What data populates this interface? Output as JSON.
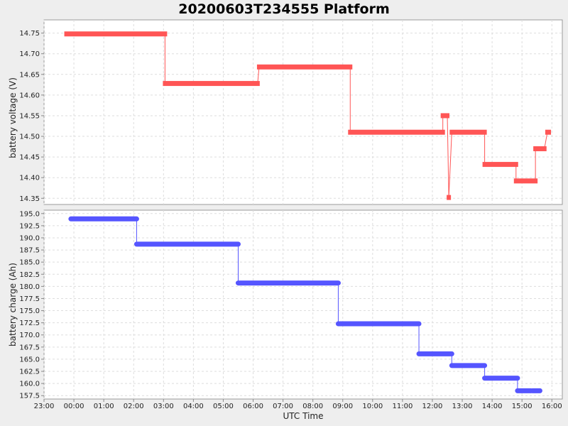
{
  "chart_data": {
    "type": "line",
    "title": "20200603T234555 Platform",
    "xlabel": "UTC Time",
    "x_ticks": [
      "23:00",
      "00:00",
      "01:00",
      "02:00",
      "03:00",
      "04:00",
      "05:00",
      "06:00",
      "07:00",
      "08:00",
      "09:00",
      "10:00",
      "11:00",
      "12:00",
      "13:00",
      "14:00",
      "15:00",
      "16:00"
    ],
    "xlim": [
      -1.0,
      16.35
    ],
    "grid": true,
    "panels": [
      {
        "ylabel": "battery voltage (V)",
        "ylim": [
          14.335,
          14.782
        ],
        "y_ticks": [
          "14.35",
          "14.40",
          "14.45",
          "14.50",
          "14.55",
          "14.60",
          "14.65",
          "14.70",
          "14.75"
        ],
        "series": [
          {
            "color": "#ff5555",
            "segments": [
              {
                "x_start": -0.25,
                "x_end": 3.05,
                "y": 14.748
              },
              {
                "x_start": 3.05,
                "x_end": 6.15,
                "y": 14.628
              },
              {
                "x_start": 6.2,
                "x_end": 9.25,
                "y": 14.668
              },
              {
                "x_start": 9.25,
                "x_end": 12.35,
                "y": 14.51
              },
              {
                "x_start": 12.35,
                "x_end": 12.5,
                "y": 14.55
              },
              {
                "x_start": 12.55,
                "x_end": 12.55,
                "y": 14.352
              },
              {
                "x_start": 12.65,
                "x_end": 13.75,
                "y": 14.51
              },
              {
                "x_start": 13.75,
                "x_end": 14.8,
                "y": 14.432
              },
              {
                "x_start": 14.8,
                "x_end": 15.45,
                "y": 14.392
              },
              {
                "x_start": 15.45,
                "x_end": 15.75,
                "y": 14.47
              },
              {
                "x_start": 15.85,
                "x_end": 15.9,
                "y": 14.51
              }
            ]
          }
        ]
      },
      {
        "ylabel": "battery charge (Ah)",
        "ylim": [
          156.8,
          195.7
        ],
        "y_ticks": [
          "157.5",
          "160.0",
          "162.5",
          "165.0",
          "167.5",
          "170.0",
          "172.5",
          "175.0",
          "177.5",
          "180.0",
          "182.5",
          "185.0",
          "187.5",
          "190.0",
          "192.5",
          "195.0"
        ],
        "series": [
          {
            "color": "#5555ff",
            "segments": [
              {
                "x_start": -0.1,
                "x_end": 2.1,
                "y": 193.9
              },
              {
                "x_start": 2.1,
                "x_end": 5.5,
                "y": 188.7
              },
              {
                "x_start": 5.5,
                "x_end": 8.85,
                "y": 180.7
              },
              {
                "x_start": 8.85,
                "x_end": 11.55,
                "y": 172.3
              },
              {
                "x_start": 11.55,
                "x_end": 12.65,
                "y": 166.1
              },
              {
                "x_start": 12.65,
                "x_end": 13.75,
                "y": 163.7
              },
              {
                "x_start": 13.75,
                "x_end": 14.85,
                "y": 161.1
              },
              {
                "x_start": 14.85,
                "x_end": 15.3,
                "y": 158.5
              },
              {
                "x_start": 15.35,
                "x_end": 15.6,
                "y": 158.5
              }
            ]
          }
        ]
      }
    ]
  }
}
